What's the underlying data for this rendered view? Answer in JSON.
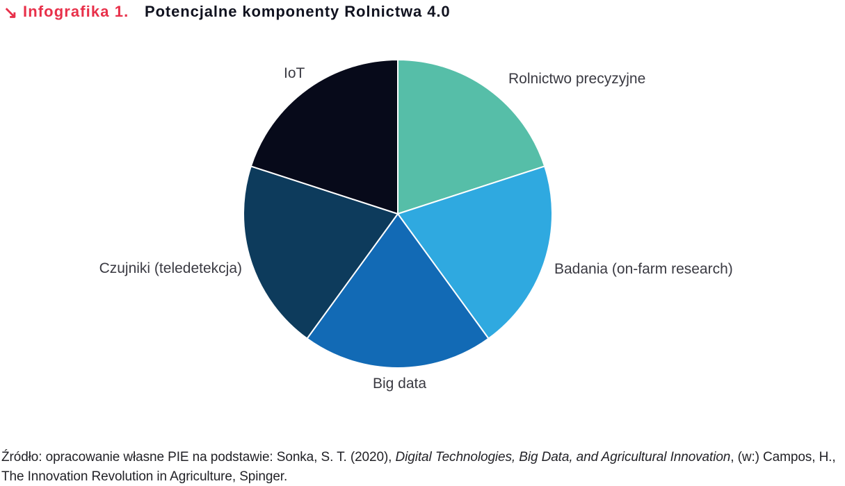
{
  "header": {
    "arrow": "↘",
    "label": "Infografika 1.",
    "title": "Potencjalne komponenty Rolnictwa 4.0",
    "accent_color": "#e8304a"
  },
  "chart_data": {
    "type": "pie",
    "title": "Potencjalne komponenty Rolnictwa 4.0",
    "start_angle_deg": 0,
    "direction": "clockwise",
    "legend_position": "labels-around-pie",
    "segments": [
      {
        "label": "Rolnictwo precyzyjne",
        "value": 20,
        "color": "#56bea8"
      },
      {
        "label": "Badania (on-farm research)",
        "value": 20,
        "color": "#2fa9e0"
      },
      {
        "label": "Big data",
        "value": 20,
        "color": "#126ab5"
      },
      {
        "label": "Czujniki (teledetekcja)",
        "value": 20,
        "color": "#0d3b5c"
      },
      {
        "label": "IoT",
        "value": 20,
        "color": "#070a1a"
      }
    ]
  },
  "source": {
    "line1_normal": "Źródło: opracowanie własne PIE na podstawie: Sonka, S. T. (2020), ",
    "line1_italic": "Digital Technologies, Big Data, and Agricultural Innovation",
    "line1_tail": ", (w:) Campos, H.,",
    "line2": "The Innovation Revolution in Agriculture, Spinger."
  }
}
